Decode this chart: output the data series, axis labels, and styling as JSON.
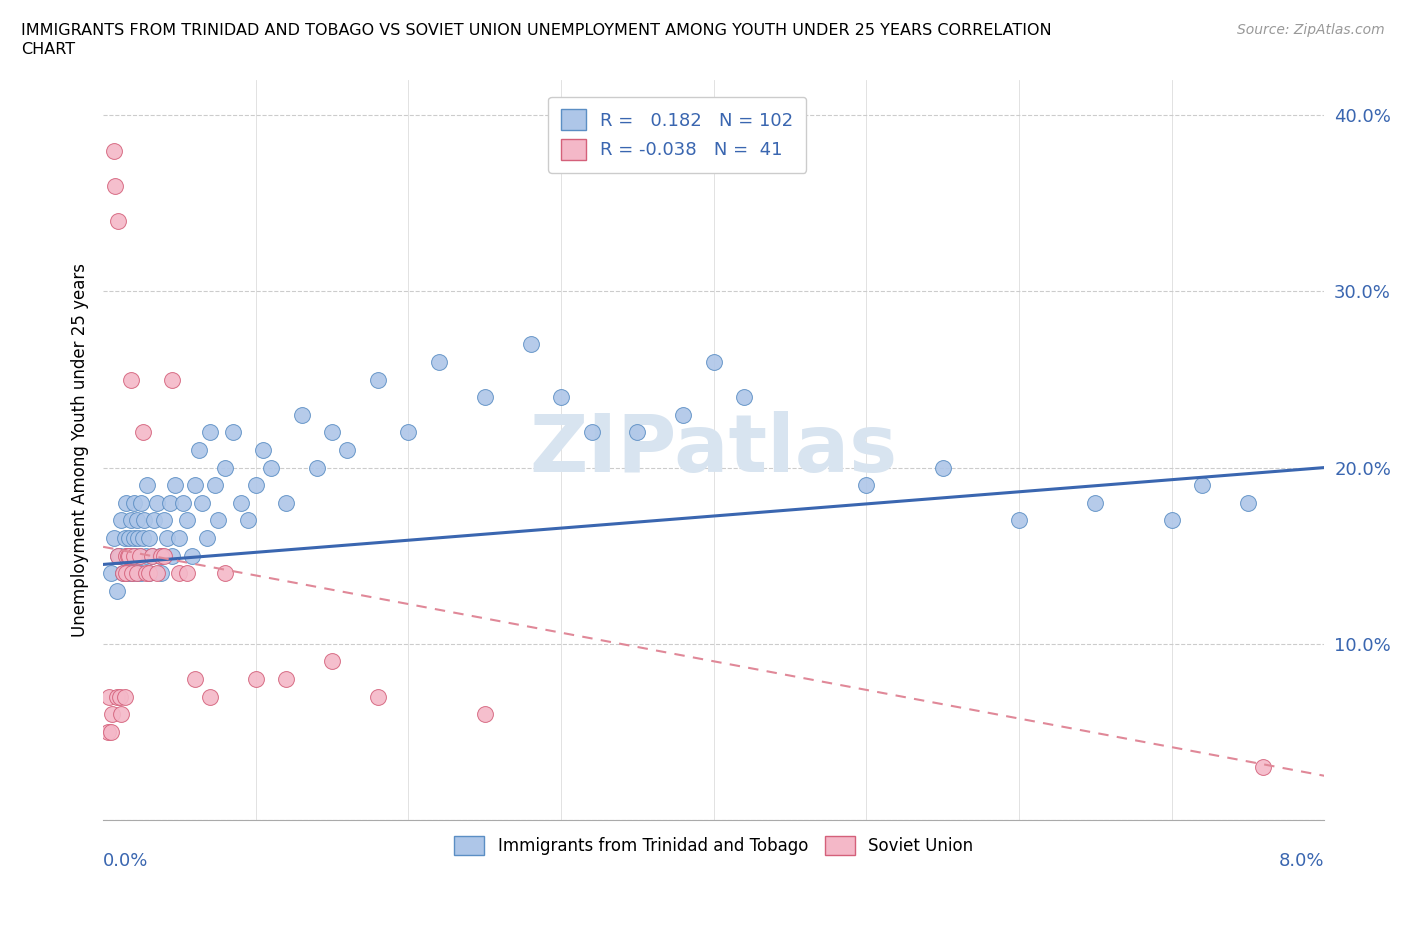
{
  "title_line1": "IMMIGRANTS FROM TRINIDAD AND TOBAGO VS SOVIET UNION UNEMPLOYMENT AMONG YOUTH UNDER 25 YEARS CORRELATION",
  "title_line2": "CHART",
  "source": "Source: ZipAtlas.com",
  "ylabel": "Unemployment Among Youth under 25 years",
  "xlim": [
    0.0,
    8.0
  ],
  "ylim": [
    0.0,
    42.0
  ],
  "yticks": [
    0,
    10,
    20,
    30,
    40
  ],
  "ytick_labels": [
    "",
    "10.0%",
    "20.0%",
    "30.0%",
    "40.0%"
  ],
  "blue_color": "#aec6e8",
  "blue_edge": "#5b8ec4",
  "pink_color": "#f4b8c8",
  "pink_edge": "#d4607a",
  "line_blue": "#3a66b0",
  "line_pink": "#e08898",
  "watermark_color": "#d8e4f0",
  "trinidad_x": [
    0.05,
    0.07,
    0.09,
    0.1,
    0.11,
    0.12,
    0.13,
    0.14,
    0.15,
    0.15,
    0.16,
    0.17,
    0.18,
    0.18,
    0.19,
    0.2,
    0.2,
    0.21,
    0.22,
    0.22,
    0.23,
    0.24,
    0.25,
    0.25,
    0.26,
    0.27,
    0.28,
    0.29,
    0.3,
    0.3,
    0.32,
    0.33,
    0.35,
    0.37,
    0.38,
    0.4,
    0.42,
    0.44,
    0.45,
    0.47,
    0.5,
    0.52,
    0.55,
    0.58,
    0.6,
    0.63,
    0.65,
    0.68,
    0.7,
    0.73,
    0.75,
    0.8,
    0.85,
    0.9,
    0.95,
    1.0,
    1.05,
    1.1,
    1.2,
    1.3,
    1.4,
    1.5,
    1.6,
    1.8,
    2.0,
    2.2,
    2.5,
    2.8,
    3.0,
    3.2,
    3.5,
    3.8,
    4.0,
    4.2,
    5.0,
    5.5,
    6.0,
    6.5,
    7.0,
    7.2,
    7.5
  ],
  "trinidad_y": [
    14,
    16,
    13,
    15,
    15,
    17,
    14,
    16,
    15,
    18,
    14,
    16,
    15,
    17,
    14,
    16,
    18,
    15,
    17,
    14,
    16,
    15,
    18,
    14,
    16,
    17,
    15,
    19,
    14,
    16,
    15,
    17,
    18,
    15,
    14,
    17,
    16,
    18,
    15,
    19,
    16,
    18,
    17,
    15,
    19,
    21,
    18,
    16,
    22,
    19,
    17,
    20,
    22,
    18,
    17,
    19,
    21,
    20,
    18,
    23,
    20,
    22,
    21,
    25,
    22,
    26,
    24,
    27,
    24,
    22,
    22,
    23,
    26,
    24,
    19,
    20,
    17,
    18,
    17,
    19,
    18
  ],
  "soviet_x": [
    0.03,
    0.04,
    0.05,
    0.06,
    0.07,
    0.08,
    0.09,
    0.1,
    0.1,
    0.11,
    0.12,
    0.13,
    0.14,
    0.15,
    0.15,
    0.16,
    0.17,
    0.18,
    0.19,
    0.2,
    0.22,
    0.24,
    0.26,
    0.28,
    0.3,
    0.32,
    0.35,
    0.38,
    0.4,
    0.45,
    0.5,
    0.55,
    0.6,
    0.7,
    0.8,
    1.0,
    1.2,
    1.5,
    1.8,
    2.5,
    7.6
  ],
  "soviet_y": [
    5,
    7,
    5,
    6,
    38,
    36,
    7,
    34,
    15,
    7,
    6,
    14,
    7,
    14,
    15,
    15,
    15,
    25,
    14,
    15,
    14,
    15,
    22,
    14,
    14,
    15,
    14,
    15,
    15,
    25,
    14,
    14,
    8,
    7,
    14,
    8,
    8,
    9,
    7,
    6,
    3
  ],
  "blue_trend_x0": 0.0,
  "blue_trend_y0": 14.5,
  "blue_trend_x1": 8.0,
  "blue_trend_y1": 20.0,
  "pink_trend_x0": 0.0,
  "pink_trend_y0": 15.5,
  "pink_trend_x1": 8.0,
  "pink_trend_y1": 2.5
}
